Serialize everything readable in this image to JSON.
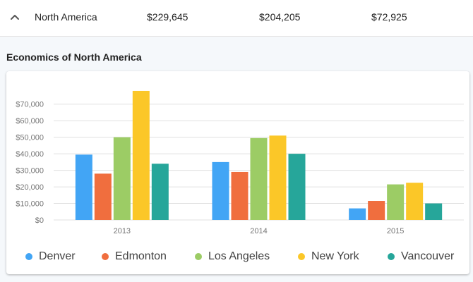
{
  "row": {
    "expand_icon": "chevron-up-icon",
    "region": "North America",
    "values": [
      "$229,645",
      "$204,205",
      "$72,925"
    ]
  },
  "section": {
    "title": "Economics of North America"
  },
  "colors": {
    "Denver": "#42a5f5",
    "Edmonton": "#f06e3e",
    "Los Angeles": "#9ccc65",
    "New York": "#fbc728",
    "Vancouver": "#26a69a",
    "grid": "#e0e0e0",
    "text": "#757575"
  },
  "chart_data": {
    "type": "bar",
    "title": "",
    "xlabel": "",
    "ylabel": "",
    "categories": [
      "2013",
      "2014",
      "2015"
    ],
    "ylim": [
      0,
      75000
    ],
    "yticks": [
      0,
      10000,
      20000,
      30000,
      40000,
      50000,
      60000,
      70000
    ],
    "ytick_labels": [
      "$0",
      "$10,000",
      "$20,000",
      "$30,000",
      "$40,000",
      "$50,000",
      "$60,000",
      "$70,000"
    ],
    "grid": true,
    "legend_position": "bottom",
    "series": [
      {
        "name": "Denver",
        "values": [
          39500,
          35000,
          7000
        ]
      },
      {
        "name": "Edmonton",
        "values": [
          28000,
          29000,
          11500
        ]
      },
      {
        "name": "Los Angeles",
        "values": [
          50000,
          49500,
          21500
        ]
      },
      {
        "name": "New York",
        "values": [
          78000,
          51000,
          22500
        ]
      },
      {
        "name": "Vancouver",
        "values": [
          34000,
          40000,
          10000
        ]
      }
    ]
  }
}
